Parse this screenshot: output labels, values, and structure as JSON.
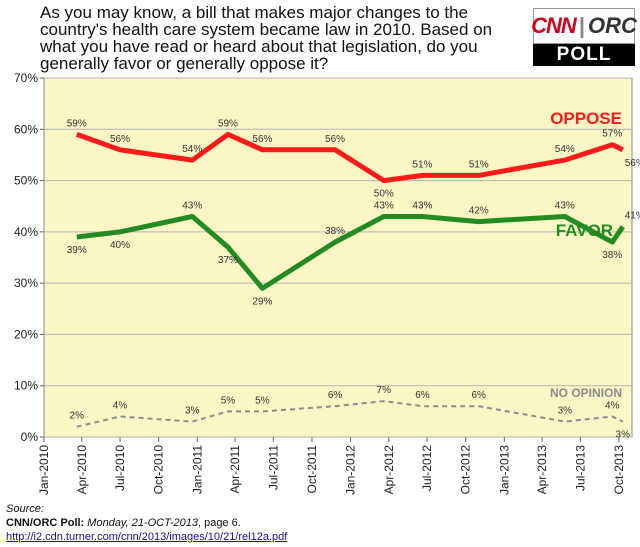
{
  "question": "As you may know, a bill that makes major changes to the country's health care system became law in 2010. Based on what you have read or heard about that legislation, do you generally favor or generally oppose it?",
  "logo": {
    "brand": "CNN",
    "partner": "ORC",
    "separator": "|",
    "subtitle": "POLL"
  },
  "source": {
    "label": "Source:",
    "poll_name": "CNN/ORC Poll:",
    "date_text": "Monday, 21-OCT-2013",
    "page_text": ", page 6.",
    "url": "http://i2.cdn.turner.com/cnn/2013/images/10/21/rel12a.pdf"
  },
  "colors": {
    "plot_bg": "#fbf6c4",
    "oppose": "#ff1a1a",
    "favor": "#228b22",
    "no_opinion": "#8c8c8c",
    "grid": "#b3b3b3"
  },
  "chart_data": {
    "type": "line",
    "title": "",
    "xlabel": "",
    "ylabel": "",
    "ylim": [
      0,
      70
    ],
    "y_ticks": [
      "0%",
      "10%",
      "20%",
      "30%",
      "40%",
      "50%",
      "60%",
      "70%"
    ],
    "x_range": [
      "2010-01-01",
      "2013-11-01"
    ],
    "x_ticks": [
      {
        "date": "2010-01-01",
        "label": "Jan-2010"
      },
      {
        "date": "2010-04-01",
        "label": "Apr-2010"
      },
      {
        "date": "2010-07-01",
        "label": "Jul-2010"
      },
      {
        "date": "2010-10-01",
        "label": "Oct-2010"
      },
      {
        "date": "2011-01-01",
        "label": "Jan-2011"
      },
      {
        "date": "2011-04-01",
        "label": "Apr-2011"
      },
      {
        "date": "2011-07-01",
        "label": "Jul-2011"
      },
      {
        "date": "2011-10-01",
        "label": "Oct-2011"
      },
      {
        "date": "2012-01-01",
        "label": "Jan-2012"
      },
      {
        "date": "2012-04-01",
        "label": "Apr-2012"
      },
      {
        "date": "2012-07-01",
        "label": "Jul-2012"
      },
      {
        "date": "2012-10-01",
        "label": "Oct-2012"
      },
      {
        "date": "2013-01-01",
        "label": "Jan-2013"
      },
      {
        "date": "2013-04-01",
        "label": "Apr-2013"
      },
      {
        "date": "2013-07-01",
        "label": "Jul-2013"
      },
      {
        "date": "2013-10-01",
        "label": "Oct-2013"
      }
    ],
    "grid": true,
    "series": [
      {
        "name": "OPPOSE",
        "key": "oppose",
        "points": [
          {
            "date": "2010-03-20",
            "value": 59,
            "label": "59%"
          },
          {
            "date": "2010-07-01",
            "value": 56,
            "label": "56%"
          },
          {
            "date": "2010-12-20",
            "value": 54,
            "label": "54%"
          },
          {
            "date": "2011-03-15",
            "value": 59,
            "label": "59%"
          },
          {
            "date": "2011-06-05",
            "value": 56,
            "label": "56%"
          },
          {
            "date": "2011-11-25",
            "value": 56,
            "label": "56%"
          },
          {
            "date": "2012-03-20",
            "value": 50,
            "label": "50%"
          },
          {
            "date": "2012-06-20",
            "value": 51,
            "label": "51%"
          },
          {
            "date": "2012-11-01",
            "value": 51,
            "label": "51%"
          },
          {
            "date": "2013-05-25",
            "value": 54,
            "label": "54%"
          },
          {
            "date": "2013-09-15",
            "value": 57,
            "label": "57%"
          },
          {
            "date": "2013-10-10",
            "value": 56,
            "label": "56%"
          }
        ]
      },
      {
        "name": "FAVOR",
        "key": "favor",
        "points": [
          {
            "date": "2010-03-20",
            "value": 39,
            "label": "39%"
          },
          {
            "date": "2010-07-01",
            "value": 40,
            "label": "40%"
          },
          {
            "date": "2010-12-20",
            "value": 43,
            "label": "43%"
          },
          {
            "date": "2011-03-15",
            "value": 37,
            "label": "37%"
          },
          {
            "date": "2011-06-05",
            "value": 29,
            "label": "29%"
          },
          {
            "date": "2011-11-25",
            "value": 38,
            "label": "38%"
          },
          {
            "date": "2012-03-20",
            "value": 43,
            "label": "43%"
          },
          {
            "date": "2012-06-20",
            "value": 43,
            "label": "43%"
          },
          {
            "date": "2012-11-01",
            "value": 42,
            "label": "42%"
          },
          {
            "date": "2013-05-25",
            "value": 43,
            "label": "43%"
          },
          {
            "date": "2013-09-15",
            "value": 38,
            "label": "38%"
          },
          {
            "date": "2013-10-10",
            "value": 41,
            "label": "41%"
          }
        ]
      },
      {
        "name": "NO OPINION",
        "key": "no_opinion",
        "points": [
          {
            "date": "2010-03-20",
            "value": 2,
            "label": "2%"
          },
          {
            "date": "2010-07-01",
            "value": 4,
            "label": "4%"
          },
          {
            "date": "2010-12-20",
            "value": 3,
            "label": "3%"
          },
          {
            "date": "2011-03-15",
            "value": 5,
            "label": "5%"
          },
          {
            "date": "2011-06-05",
            "value": 5,
            "label": "5%"
          },
          {
            "date": "2011-11-25",
            "value": 6,
            "label": "6%"
          },
          {
            "date": "2012-03-20",
            "value": 7,
            "label": "7%"
          },
          {
            "date": "2012-06-20",
            "value": 6,
            "label": "6%"
          },
          {
            "date": "2012-11-01",
            "value": 6,
            "label": "6%"
          },
          {
            "date": "2013-05-25",
            "value": 3,
            "label": "3%"
          },
          {
            "date": "2013-09-15",
            "value": 4,
            "label": "4%"
          },
          {
            "date": "2013-10-10",
            "value": 3,
            "label": "3%"
          }
        ]
      }
    ]
  }
}
